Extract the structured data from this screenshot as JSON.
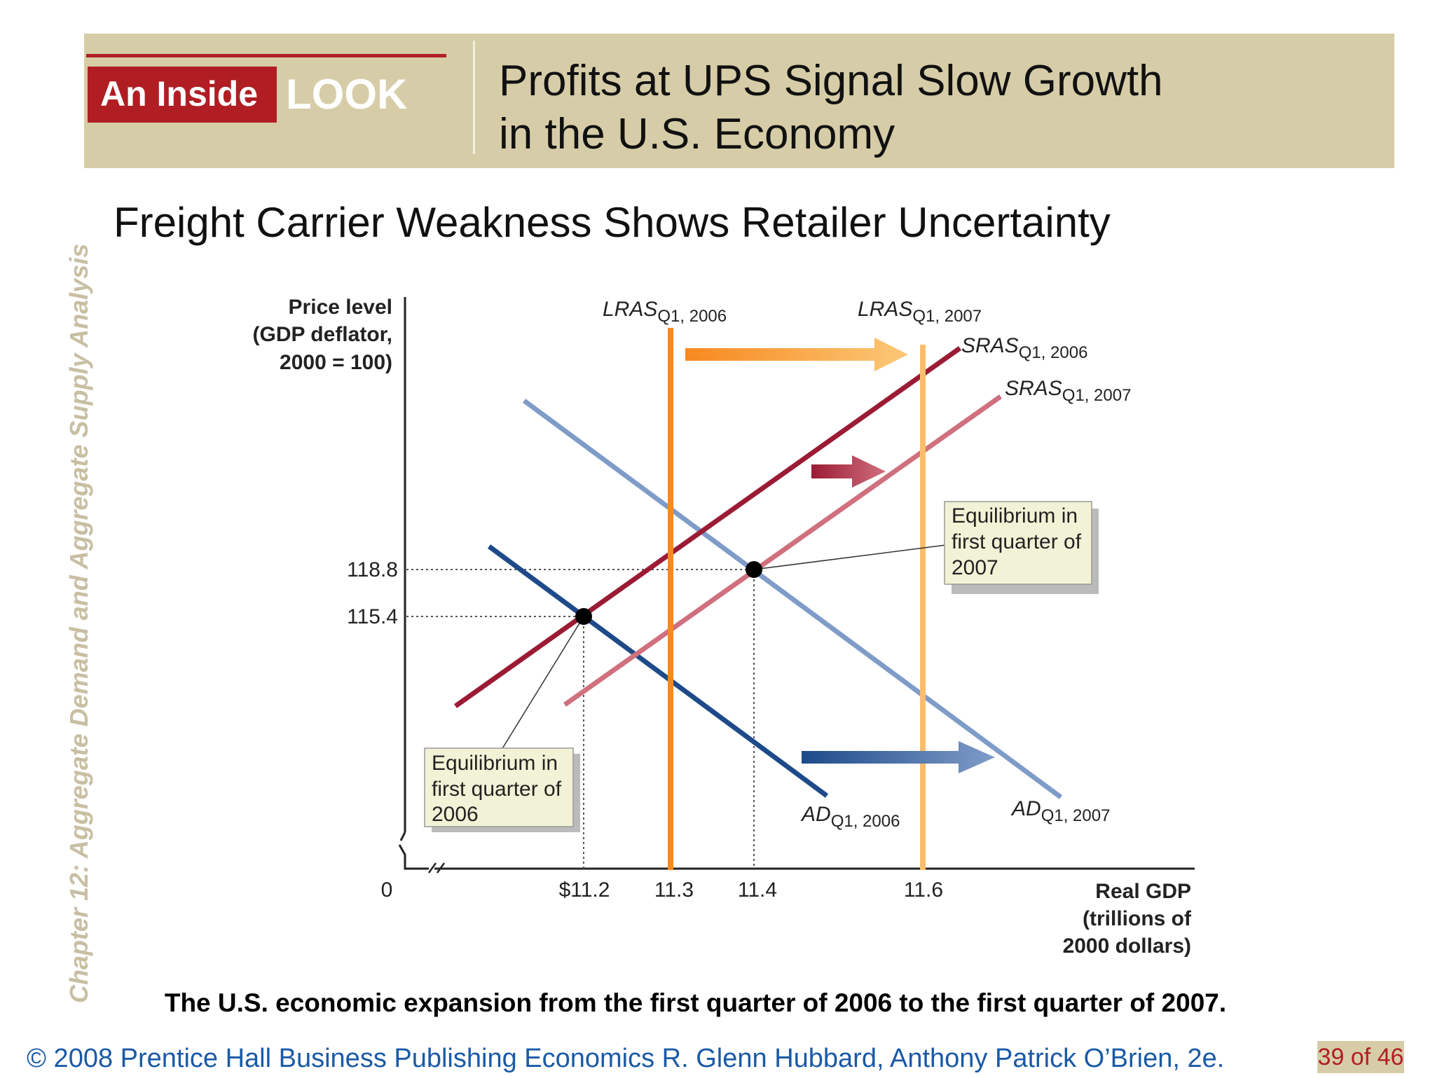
{
  "header": {
    "brand_inside": "An Inside",
    "brand_look": "LOOK",
    "title": "Profits at UPS Signal Slow Growth\nin the U.S. Economy"
  },
  "sidebar_text": "Chapter 12:  Aggregate Demand and Aggregate Supply Analysis",
  "subtitle": "Freight Carrier Weakness Shows Retailer Uncertainty",
  "figure": {
    "y_axis_label": [
      "Price level",
      "(GDP deflator,",
      "2000 = 100)"
    ],
    "x_axis_label": [
      "Real GDP",
      "(trillions of",
      "2000 dollars)"
    ],
    "origin_label": "0",
    "x_ticks": [
      "$11.2",
      "11.3",
      "11.4",
      "11.6"
    ],
    "y_ticks": [
      "118.8",
      "115.4"
    ],
    "curves": {
      "lras_2006": {
        "name": "LRAS",
        "sub": "Q1, 2006",
        "color": "#f7891f"
      },
      "lras_2007": {
        "name": "LRAS",
        "sub": "Q1, 2007",
        "color": "#fbbd6b"
      },
      "sras_2006": {
        "name": "SRAS",
        "sub": "Q1, 2006",
        "color": "#9b1b35"
      },
      "sras_2007": {
        "name": "SRAS",
        "sub": "Q1, 2007",
        "color": "#d0707e"
      },
      "ad_2006": {
        "name": "AD",
        "sub": "Q1, 2006",
        "color": "#1e4a8a"
      },
      "ad_2007": {
        "name": "AD",
        "sub": "Q1, 2007",
        "color": "#7f9cc8"
      }
    },
    "callouts": {
      "eq_2006": [
        "Equilibrium in",
        "first quarter of",
        "2006"
      ],
      "eq_2007": [
        "Equilibrium in",
        "first quarter of",
        "2007"
      ]
    },
    "equilibria": [
      {
        "label": "2006",
        "real_gdp": 11.2,
        "price_level": 115.4
      },
      {
        "label": "2007",
        "real_gdp": 11.4,
        "price_level": 118.8
      }
    ]
  },
  "caption": "The U.S. economic expansion from the first quarter of 2006 to the first quarter of 2007.",
  "footer": {
    "text": "© 2008 Prentice Hall Business Publishing   Economics  R. Glenn Hubbard, Anthony Patrick O’Brien, 2e.",
    "page": "39 of 46"
  }
}
